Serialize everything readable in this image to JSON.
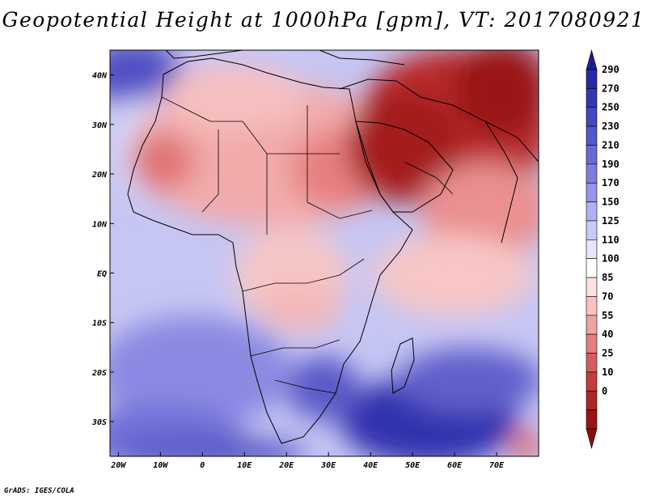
{
  "title": "Geopotential Height at 1000hPa [gpm], VT: 2017080921",
  "credit": "GrADS: IGES/COLA",
  "map": {
    "lat_labels": [
      "40N",
      "30N",
      "20N",
      "10N",
      "EQ",
      "10S",
      "20S",
      "30S"
    ],
    "lat_values": [
      40,
      30,
      20,
      10,
      0,
      -10,
      -20,
      -30
    ],
    "lon_labels": [
      "20W",
      "10W",
      "0",
      "10E",
      "20E",
      "30E",
      "40E",
      "50E",
      "60E",
      "70E"
    ],
    "lon_values": [
      -20,
      -10,
      0,
      10,
      20,
      30,
      40,
      50,
      60,
      70
    ],
    "lon_range": [
      -22,
      80
    ],
    "lat_range": [
      -37,
      45
    ]
  },
  "colorbar": {
    "labels": [
      "290",
      "270",
      "250",
      "230",
      "210",
      "190",
      "170",
      "150",
      "125",
      "110",
      "100",
      "85",
      "70",
      "55",
      "40",
      "25",
      "10",
      "0"
    ],
    "colors": [
      "#2a2aa6",
      "#3636b4",
      "#4646c0",
      "#5656cb",
      "#6a6ad6",
      "#7e7ee0",
      "#9696ea",
      "#b0b0f2",
      "#cacaf8",
      "#e6e6fc",
      "#ffffff",
      "#fde0e0",
      "#f8c2c2",
      "#f0a2a2",
      "#e47e7e",
      "#d65c5c",
      "#c43c3c",
      "#b02626",
      "#9a1414"
    ],
    "top_color": "#1c1c99",
    "bottom_color": "#8c0c0c"
  }
}
